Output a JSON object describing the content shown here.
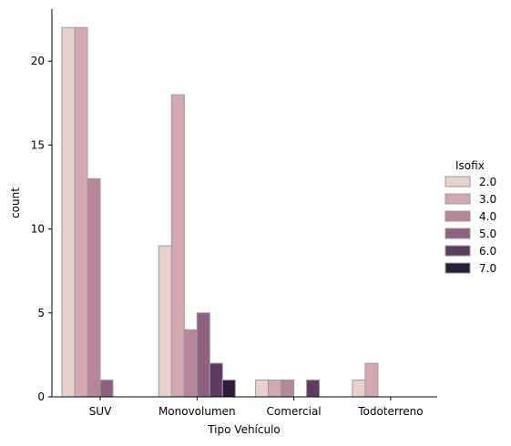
{
  "chart_data": {
    "type": "bar",
    "xlabel": "Tipo Vehículo",
    "ylabel": "count",
    "ylim": [
      0,
      23.1
    ],
    "yticks": [
      0,
      5,
      10,
      15,
      20
    ],
    "categories": [
      "SUV",
      "Monovolumen",
      "Comercial",
      "Todoterreno"
    ],
    "legend_title": "Isofix",
    "legend_position": "right",
    "series": [
      {
        "name": "2.0",
        "color": "#e9d1cc",
        "values": [
          22,
          9,
          1,
          1
        ]
      },
      {
        "name": "3.0",
        "color": "#d5a7b1",
        "values": [
          22,
          18,
          1,
          2
        ]
      },
      {
        "name": "4.0",
        "color": "#b98399",
        "values": [
          13,
          4,
          1,
          0
        ]
      },
      {
        "name": "5.0",
        "color": "#915e84",
        "values": [
          1,
          5,
          0,
          0
        ]
      },
      {
        "name": "6.0",
        "color": "#5f3b64",
        "values": [
          0,
          2,
          1,
          0
        ]
      },
      {
        "name": "7.0",
        "color": "#2b1d38",
        "values": [
          0,
          1,
          0,
          0
        ]
      }
    ]
  }
}
